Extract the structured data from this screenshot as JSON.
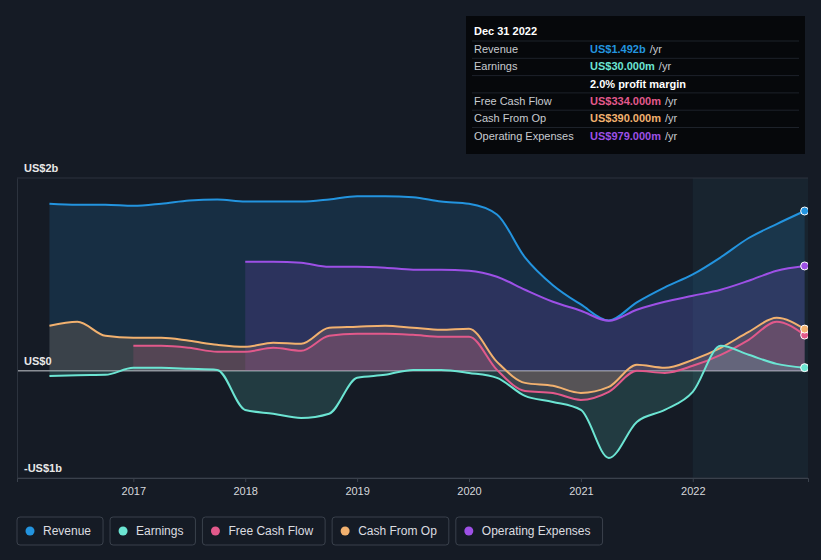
{
  "chart_data": {
    "type": "line",
    "x": [
      2016.25,
      2016.5,
      2016.75,
      2017.0,
      2017.25,
      2017.5,
      2017.75,
      2018.0,
      2018.25,
      2018.5,
      2018.75,
      2019.0,
      2019.25,
      2019.5,
      2019.75,
      2020.0,
      2020.25,
      2020.5,
      2020.75,
      2021.0,
      2021.25,
      2021.5,
      2021.75,
      2022.0,
      2022.25,
      2022.5,
      2022.75,
      2023.0
    ],
    "series": [
      {
        "name": "Revenue",
        "color": "#2394df",
        "values": [
          1560,
          1550,
          1550,
          1540,
          1560,
          1590,
          1600,
          1580,
          1580,
          1580,
          1600,
          1630,
          1630,
          1620,
          1580,
          1560,
          1460,
          1060,
          800,
          620,
          470,
          640,
          780,
          900,
          1060,
          1240,
          1370,
          1492
        ]
      },
      {
        "name": "Earnings",
        "color": "#6ce5d3",
        "values": [
          -47,
          -40,
          -37,
          28,
          28,
          19,
          9,
          -365,
          -400,
          -440,
          -400,
          -65,
          -37,
          9,
          9,
          -19,
          -65,
          -234,
          -290,
          -365,
          -813,
          -477,
          -365,
          -196,
          234,
          150,
          65,
          30
        ]
      },
      {
        "name": "Free Cash Flow",
        "color": "#e2598b",
        "values": [
          null,
          null,
          null,
          234,
          234,
          215,
          178,
          178,
          215,
          187,
          327,
          346,
          346,
          336,
          318,
          318,
          9,
          -187,
          -206,
          -271,
          -196,
          0,
          -19,
          47,
          150,
          290,
          458,
          334
        ]
      },
      {
        "name": "Cash From Op",
        "color": "#f2b16f",
        "values": [
          421,
          458,
          327,
          308,
          308,
          280,
          243,
          224,
          262,
          252,
          402,
          411,
          421,
          402,
          383,
          393,
          84,
          -112,
          -140,
          -206,
          -150,
          56,
          28,
          103,
          215,
          364,
          495,
          390
        ]
      },
      {
        "name": "Operating Expenses",
        "color": "#9d50e6",
        "values": [
          null,
          null,
          null,
          null,
          null,
          null,
          null,
          1019,
          1019,
          1009,
          972,
          972,
          963,
          944,
          944,
          935,
          879,
          757,
          645,
          561,
          467,
          570,
          645,
          701,
          757,
          841,
          935,
          979
        ]
      }
    ],
    "xlim": [
      2015.96,
      2023.03
    ],
    "xticks": [
      2017,
      2018,
      2019,
      2020,
      2021,
      2022
    ],
    "ylim": [
      -1000,
      1800
    ],
    "yticks": [
      {
        "value": -1000,
        "label": "-US$1b"
      },
      {
        "value": 0,
        "label": "US$0"
      },
      {
        "value": 1800,
        "label": "US$2b"
      }
    ],
    "grid": true,
    "legend": "bottom",
    "annotations": {
      "date": "Dec 31 2022",
      "rows": [
        {
          "label": "Revenue",
          "value": "US$1.492b",
          "unit": "/yr"
        },
        {
          "label": "Earnings",
          "value": "US$30.000m",
          "unit": "/yr"
        },
        {
          "value": "2.0% profit margin"
        },
        {
          "label": "Free Cash Flow",
          "value": "US$334.000m",
          "unit": "/yr"
        },
        {
          "label": "Cash From Op",
          "value": "US$390.000m",
          "unit": "/yr"
        },
        {
          "label": "Operating Expenses",
          "value": "US$979.000m",
          "unit": "/yr"
        }
      ]
    }
  }
}
